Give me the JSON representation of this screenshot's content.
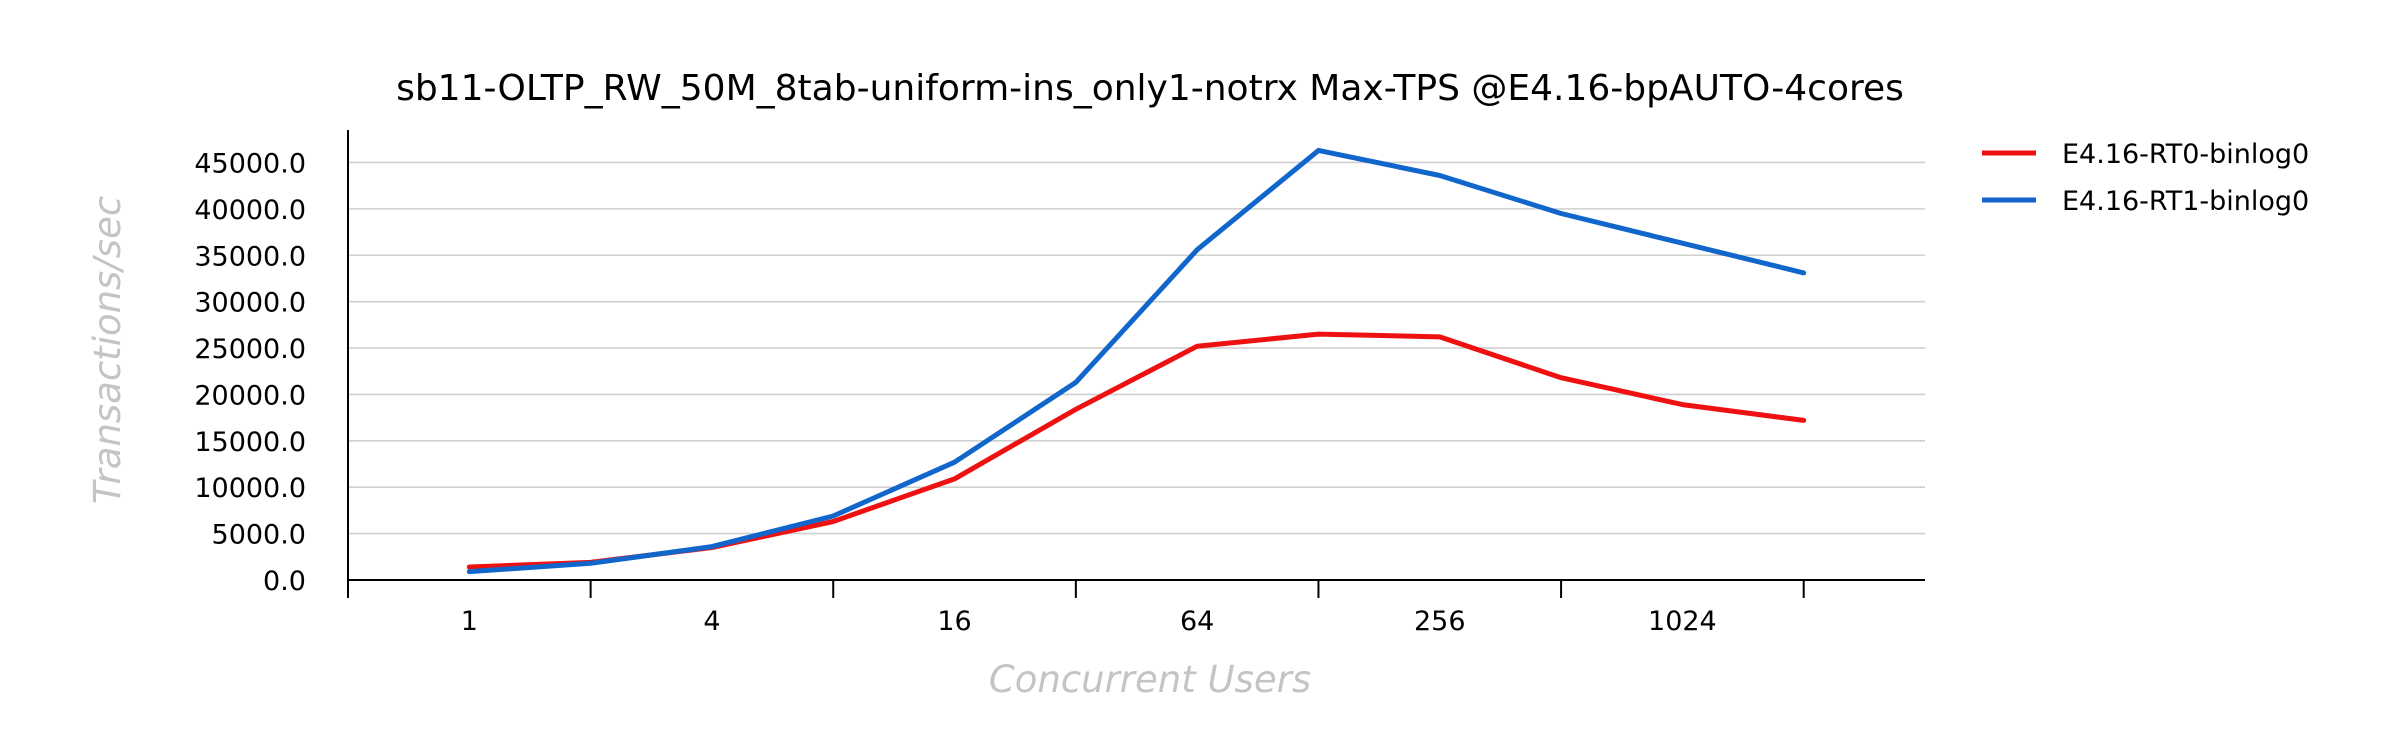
{
  "chart_data": {
    "type": "line",
    "title": "sb11-OLTP_RW_50M_8tab-uniform-ins_only1-notrx Max-TPS @E4.16-bpAUTO-4cores",
    "xlabel": "Concurrent Users",
    "ylabel": "Transactions/sec",
    "x_scale": "log2",
    "x": [
      1,
      2,
      4,
      8,
      16,
      32,
      64,
      128,
      256,
      512,
      1024,
      2048
    ],
    "x_tick_labels": [
      "1",
      "4",
      "16",
      "64",
      "256",
      "1024"
    ],
    "x_tick_label_values": [
      1,
      4,
      16,
      64,
      256,
      1024
    ],
    "x_tick_marks": [
      0.5,
      2,
      8,
      32,
      128,
      512,
      2048
    ],
    "xlim": [
      0.5,
      4096
    ],
    "ylim": [
      0,
      48500
    ],
    "y_ticks": [
      0,
      5000,
      10000,
      15000,
      20000,
      25000,
      30000,
      35000,
      40000,
      45000
    ],
    "y_tick_labels": [
      "0.0",
      "5000.0",
      "10000.0",
      "15000.0",
      "20000.0",
      "25000.0",
      "30000.0",
      "35000.0",
      "40000.0",
      "45000.0"
    ],
    "grid": "horizontal",
    "legend_position": "right",
    "series": [
      {
        "name": "E4.16-RT0-binlog0",
        "color": "#ee1111",
        "values": [
          1400,
          1900,
          3500,
          6300,
          10900,
          18400,
          25200,
          26500,
          26200,
          21800,
          18900,
          17200
        ]
      },
      {
        "name": "E4.16-RT1-binlog0",
        "color": "#1166cc",
        "values": [
          900,
          1800,
          3600,
          6900,
          12700,
          21300,
          35600,
          46300,
          43600,
          39500,
          36300,
          33100
        ]
      }
    ]
  }
}
